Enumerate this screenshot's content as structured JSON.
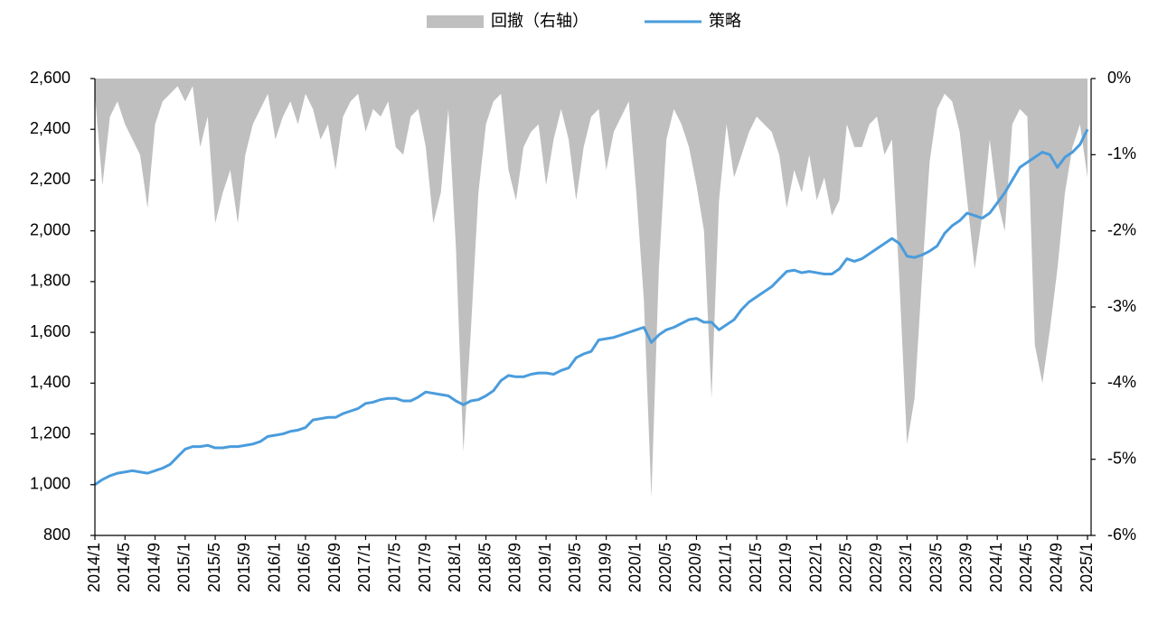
{
  "chart_data": {
    "type": "line",
    "categories": [
      "2014/1",
      null,
      null,
      null,
      "2014/5",
      null,
      null,
      null,
      "2014/9",
      null,
      null,
      null,
      "2015/1",
      null,
      null,
      null,
      "2015/5",
      null,
      null,
      null,
      "2015/9",
      null,
      null,
      null,
      "2016/1",
      null,
      null,
      null,
      "2016/5",
      null,
      null,
      null,
      "2016/9",
      null,
      null,
      null,
      "2017/1",
      null,
      null,
      null,
      "2017/5",
      null,
      null,
      null,
      "2017/9",
      null,
      null,
      null,
      "2018/1",
      null,
      null,
      null,
      "2018/5",
      null,
      null,
      null,
      "2018/9",
      null,
      null,
      null,
      "2019/1",
      null,
      null,
      null,
      "2019/5",
      null,
      null,
      null,
      "2019/9",
      null,
      null,
      null,
      "2020/1",
      null,
      null,
      null,
      "2020/5",
      null,
      null,
      null,
      "2020/9",
      null,
      null,
      null,
      "2021/1",
      null,
      null,
      null,
      "2021/5",
      null,
      null,
      null,
      "2021/9",
      null,
      null,
      null,
      "2022/1",
      null,
      null,
      null,
      "2022/5",
      null,
      null,
      null,
      "2022/9",
      null,
      null,
      null,
      "2023/1",
      null,
      null,
      null,
      "2023/5",
      null,
      null,
      null,
      "2023/9",
      null,
      null,
      null,
      "2024/1",
      null,
      null,
      null,
      "2024/5",
      null,
      null,
      null,
      "2024/9",
      null,
      null,
      null,
      "2025/1"
    ],
    "series": [
      {
        "name": "回撤（右轴）",
        "type": "area",
        "axis": "y2",
        "color": "#bfbfbf",
        "values": [
          -0.2,
          -1.4,
          -0.5,
          -0.3,
          -0.6,
          -0.8,
          -1.0,
          -1.7,
          -0.6,
          -0.3,
          -0.2,
          -0.1,
          -0.3,
          -0.1,
          -0.9,
          -0.5,
          -1.9,
          -1.5,
          -1.2,
          -1.9,
          -1.0,
          -0.6,
          -0.4,
          -0.2,
          -0.8,
          -0.5,
          -0.3,
          -0.6,
          -0.2,
          -0.4,
          -0.8,
          -0.6,
          -1.2,
          -0.5,
          -0.3,
          -0.2,
          -0.7,
          -0.4,
          -0.5,
          -0.3,
          -0.9,
          -1.0,
          -0.5,
          -0.4,
          -0.9,
          -1.9,
          -1.5,
          -0.4,
          -2.2,
          -4.9,
          -3.3,
          -1.5,
          -0.6,
          -0.3,
          -0.2,
          -1.2,
          -1.6,
          -0.9,
          -0.7,
          -0.6,
          -1.4,
          -0.8,
          -0.4,
          -0.8,
          -1.6,
          -0.9,
          -0.5,
          -0.4,
          -1.2,
          -0.7,
          -0.5,
          -0.3,
          -1.5,
          -2.9,
          -5.5,
          -2.5,
          -0.8,
          -0.4,
          -0.6,
          -0.9,
          -1.4,
          -2.0,
          -4.2,
          -1.6,
          -0.6,
          -1.3,
          -1.0,
          -0.7,
          -0.5,
          -0.6,
          -0.7,
          -1.0,
          -1.7,
          -1.2,
          -1.5,
          -1.0,
          -1.6,
          -1.3,
          -1.8,
          -1.6,
          -0.6,
          -0.9,
          -0.9,
          -0.6,
          -0.5,
          -1.0,
          -0.8,
          -2.7,
          -4.8,
          -4.2,
          -2.6,
          -1.1,
          -0.4,
          -0.2,
          -0.3,
          -0.7,
          -1.6,
          -2.5,
          -1.8,
          -0.8,
          -1.6,
          -2.0,
          -0.6,
          -0.4,
          -0.5,
          -3.5,
          -4.0,
          -3.3,
          -2.5,
          -1.5,
          -0.9,
          -0.6,
          -1.3
        ]
      },
      {
        "name": "策略",
        "type": "line",
        "color": "#4a9cdc",
        "values": [
          1000,
          1020,
          1035,
          1045,
          1050,
          1055,
          1050,
          1045,
          1055,
          1065,
          1080,
          1110,
          1140,
          1150,
          1150,
          1155,
          1145,
          1145,
          1150,
          1150,
          1155,
          1160,
          1170,
          1190,
          1195,
          1200,
          1210,
          1215,
          1225,
          1255,
          1260,
          1265,
          1265,
          1280,
          1290,
          1300,
          1320,
          1325,
          1335,
          1340,
          1340,
          1330,
          1330,
          1345,
          1365,
          1360,
          1355,
          1350,
          1330,
          1315,
          1330,
          1335,
          1350,
          1370,
          1410,
          1430,
          1425,
          1425,
          1435,
          1440,
          1440,
          1435,
          1450,
          1460,
          1500,
          1515,
          1525,
          1570,
          1575,
          1580,
          1590,
          1600,
          1610,
          1620,
          1560,
          1590,
          1610,
          1620,
          1635,
          1650,
          1655,
          1640,
          1640,
          1610,
          1630,
          1650,
          1690,
          1720,
          1740,
          1760,
          1780,
          1810,
          1840,
          1845,
          1835,
          1840,
          1835,
          1830,
          1830,
          1850,
          1890,
          1880,
          1890,
          1910,
          1930,
          1950,
          1970,
          1950,
          1900,
          1895,
          1905,
          1920,
          1940,
          1990,
          2020,
          2040,
          2070,
          2060,
          2050,
          2070,
          2110,
          2150,
          2200,
          2250,
          2270,
          2290,
          2310,
          2300,
          2250,
          2290,
          2310,
          2340,
          2400
        ]
      }
    ],
    "ylim": [
      800,
      2600
    ],
    "yticks": [
      800,
      {
        "value": 1000,
        "label": "1,000"
      },
      {
        "value": 1200,
        "label": "1,200"
      },
      {
        "value": 1400,
        "label": "1,400"
      },
      {
        "value": 1600,
        "label": "1,600"
      },
      {
        "value": 1800,
        "label": "1,800"
      },
      {
        "value": 2000,
        "label": "2,000"
      },
      {
        "value": 2200,
        "label": "2,200"
      },
      {
        "value": 2400,
        "label": "2,400"
      },
      {
        "value": 2600,
        "label": "2,600"
      }
    ],
    "y2lim": [
      -6,
      0
    ],
    "y2ticks": [
      {
        "value": 0,
        "label": "0%"
      },
      {
        "value": -1,
        "label": "-1%"
      },
      {
        "value": -2,
        "label": "-2%"
      },
      {
        "value": -3,
        "label": "-3%"
      },
      {
        "value": -4,
        "label": "-4%"
      },
      {
        "value": -5,
        "label": "-5%"
      },
      {
        "value": -6,
        "label": "-6%"
      }
    ],
    "legend": "top"
  }
}
